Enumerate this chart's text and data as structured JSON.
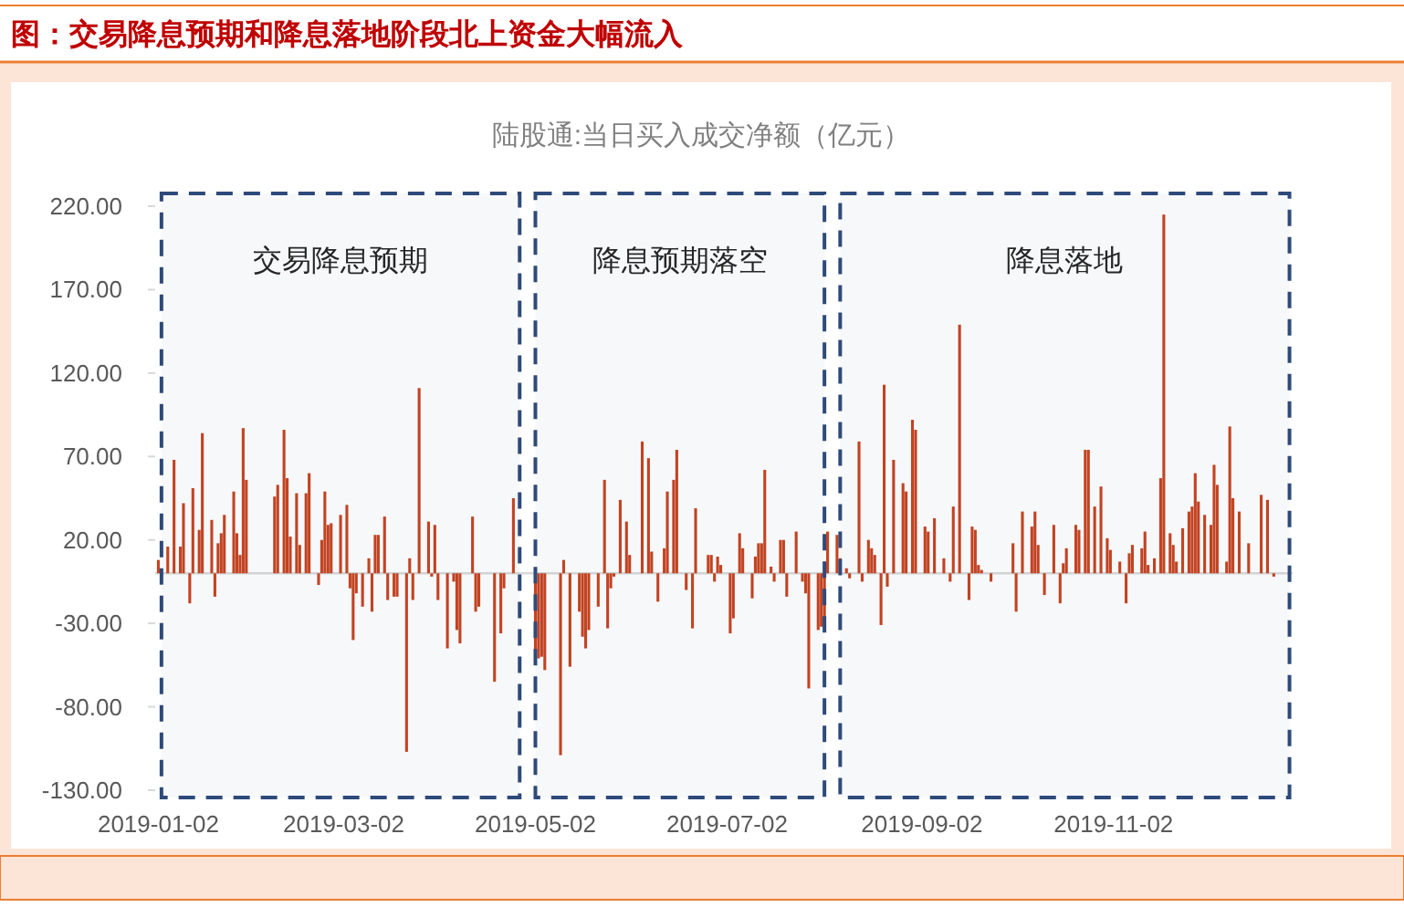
{
  "chart_data": {
    "type": "bar",
    "title": "图：交易降息预期和降息落地阶段北上资金大幅流入",
    "subtitle": "陆股通:当日买入成交净额（亿元）",
    "color": "#c8431f",
    "xlim": [
      "2019-01-01",
      "2019-12-29"
    ],
    "xticks": [
      "2019-01-02",
      "2019-03-02",
      "2019-05-02",
      "2019-07-02",
      "2019-09-02",
      "2019-11-02"
    ],
    "ylim": [
      -130,
      220
    ],
    "yticks": [
      {
        "value": -130,
        "label": "-130.00"
      },
      {
        "value": -80,
        "label": "-80.00"
      },
      {
        "value": -30,
        "label": "-30.00"
      },
      {
        "value": 20,
        "label": "20.00"
      },
      {
        "value": 70,
        "label": "70.00"
      },
      {
        "value": 120,
        "label": "120.00"
      },
      {
        "value": 170,
        "label": "170.00"
      },
      {
        "value": 220,
        "label": "220.00"
      }
    ],
    "bands": [
      {
        "axis": "x",
        "from": "2019-01-03",
        "to": "2019-04-27",
        "label": "交易降息预期",
        "color": "#2e4a7a"
      },
      {
        "axis": "x",
        "from": "2019-05-02",
        "to": "2019-08-02",
        "label": "降息预期落空",
        "color": "#2e4a7a"
      },
      {
        "axis": "x",
        "from": "2019-08-07",
        "to": "2019-12-28",
        "label": "降息落地",
        "color": "#2e4a7a"
      }
    ],
    "x": [
      "2019-01-02",
      "2019-01-05",
      "2019-01-07",
      "2019-01-09",
      "2019-01-10",
      "2019-01-12",
      "2019-01-13",
      "2019-01-15",
      "2019-01-16",
      "2019-01-19",
      "2019-01-20",
      "2019-01-21",
      "2019-01-22",
      "2019-01-23",
      "2019-01-26",
      "2019-01-27",
      "2019-01-28",
      "2019-01-29",
      "2019-01-30",
      "2019-02-08",
      "2019-02-09",
      "2019-02-11",
      "2019-02-12",
      "2019-02-13",
      "2019-02-15",
      "2019-02-16",
      "2019-02-18",
      "2019-02-19",
      "2019-02-22",
      "2019-02-23",
      "2019-02-24",
      "2019-02-25",
      "2019-02-26",
      "2019-03-01",
      "2019-03-03",
      "2019-03-04",
      "2019-03-05",
      "2019-03-06",
      "2019-03-08",
      "2019-03-10",
      "2019-03-11",
      "2019-03-12",
      "2019-03-13",
      "2019-03-15",
      "2019-03-16",
      "2019-03-18",
      "2019-03-19",
      "2019-03-22",
      "2019-03-23",
      "2019-03-24",
      "2019-03-26",
      "2019-03-29",
      "2019-03-30",
      "2019-03-31",
      "2019-04-01",
      "2019-04-04",
      "2019-04-06",
      "2019-04-07",
      "2019-04-08",
      "2019-04-12",
      "2019-04-13",
      "2019-04-14",
      "2019-04-19",
      "2019-04-21",
      "2019-04-22",
      "2019-04-25",
      "2019-05-02",
      "2019-05-03",
      "2019-05-04",
      "2019-05-05",
      "2019-05-10",
      "2019-05-11",
      "2019-05-13",
      "2019-05-16",
      "2019-05-17",
      "2019-05-18",
      "2019-05-19",
      "2019-05-22",
      "2019-05-24",
      "2019-05-25",
      "2019-05-26",
      "2019-05-27",
      "2019-05-29",
      "2019-05-31",
      "2019-06-01",
      "2019-06-05",
      "2019-06-07",
      "2019-06-08",
      "2019-06-10",
      "2019-06-12",
      "2019-06-13",
      "2019-06-15",
      "2019-06-16",
      "2019-06-19",
      "2019-06-21",
      "2019-06-22",
      "2019-06-26",
      "2019-06-27",
      "2019-06-28",
      "2019-06-29",
      "2019-06-30",
      "2019-07-03",
      "2019-07-04",
      "2019-07-06",
      "2019-07-07",
      "2019-07-10",
      "2019-07-11",
      "2019-07-12",
      "2019-07-13",
      "2019-07-14",
      "2019-07-16",
      "2019-07-17",
      "2019-07-19",
      "2019-07-20",
      "2019-07-21",
      "2019-07-24",
      "2019-07-26",
      "2019-07-27",
      "2019-07-28",
      "2019-07-31",
      "2019-08-01",
      "2019-08-02",
      "2019-08-03",
      "2019-08-06",
      "2019-08-07",
      "2019-08-09",
      "2019-08-10",
      "2019-08-13",
      "2019-08-14",
      "2019-08-16",
      "2019-08-17",
      "2019-08-18",
      "2019-08-20",
      "2019-08-21",
      "2019-08-22",
      "2019-08-24",
      "2019-08-27",
      "2019-08-28",
      "2019-08-30",
      "2019-08-31",
      "2019-09-03",
      "2019-09-04",
      "2019-09-06",
      "2019-09-09",
      "2019-09-11",
      "2019-09-12",
      "2019-09-14",
      "2019-09-17",
      "2019-09-18",
      "2019-09-19",
      "2019-09-20",
      "2019-09-21",
      "2019-09-24",
      "2019-10-01",
      "2019-10-02",
      "2019-10-04",
      "2019-10-07",
      "2019-10-08",
      "2019-10-09",
      "2019-10-11",
      "2019-10-14",
      "2019-10-16",
      "2019-10-17",
      "2019-10-18",
      "2019-10-21",
      "2019-10-22",
      "2019-10-24",
      "2019-10-25",
      "2019-10-27",
      "2019-10-29",
      "2019-10-31",
      "2019-11-01",
      "2019-11-04",
      "2019-11-06",
      "2019-11-07",
      "2019-11-08",
      "2019-11-11",
      "2019-11-12",
      "2019-11-13",
      "2019-11-15",
      "2019-11-17",
      "2019-11-18",
      "2019-11-20",
      "2019-11-21",
      "2019-11-22",
      "2019-11-24",
      "2019-11-26",
      "2019-11-27",
      "2019-11-28",
      "2019-11-29",
      "2019-12-01",
      "2019-12-03",
      "2019-12-04",
      "2019-12-05",
      "2019-12-08",
      "2019-12-09",
      "2019-12-10",
      "2019-12-12",
      "2019-12-15",
      "2019-12-19",
      "2019-12-21",
      "2019-12-23"
    ],
    "values": [
      8,
      16,
      68,
      16,
      42,
      -18,
      51,
      26,
      84,
      32,
      -14,
      18,
      24,
      35,
      49,
      24,
      11,
      87,
      56,
      46,
      53,
      86,
      57,
      22,
      48,
      17,
      48,
      60,
      -7,
      20,
      49,
      29,
      30,
      35,
      41,
      -9,
      -40,
      -12,
      -20,
      9,
      -23,
      23,
      23,
      34,
      -16,
      -14,
      -14,
      -107,
      9,
      -16,
      111,
      31,
      -2,
      29,
      -16,
      -45,
      -5,
      -34,
      -42,
      34,
      -23,
      -20,
      -65,
      -36,
      -9,
      45,
      -47,
      -51,
      -50,
      -58,
      -109,
      8,
      -56,
      -23,
      -38,
      -45,
      -34,
      -20,
      56,
      -33,
      -9,
      -2,
      44,
      31,
      11,
      79,
      69,
      13,
      -17,
      15,
      49,
      56,
      74,
      -10,
      -33,
      39,
      11,
      11,
      -5,
      10,
      5,
      -36,
      -27,
      24,
      15,
      -15,
      10,
      18,
      18,
      62,
      4,
      -5,
      20,
      20,
      -14,
      25,
      -5,
      -12,
      -69,
      -34,
      -32,
      -32,
      25,
      23,
      9,
      3,
      -3,
      79,
      -5,
      20,
      15,
      11,
      -31,
      113,
      -8,
      68,
      54,
      49,
      92,
      86,
      28,
      25,
      33,
      9,
      -5,
      40,
      149,
      -16,
      28,
      26,
      5,
      2,
      -5,
      18,
      -23,
      37,
      28,
      37,
      17,
      -13,
      29,
      -18,
      6,
      15,
      29,
      26,
      74,
      74,
      40,
      52,
      21,
      14,
      7,
      -18,
      12,
      17,
      15,
      25,
      5,
      9,
      57,
      215,
      24,
      17,
      7,
      27,
      37,
      40,
      60,
      43,
      35,
      29,
      65,
      53,
      7,
      88,
      45,
      37,
      18,
      47,
      44,
      -2
    ]
  }
}
